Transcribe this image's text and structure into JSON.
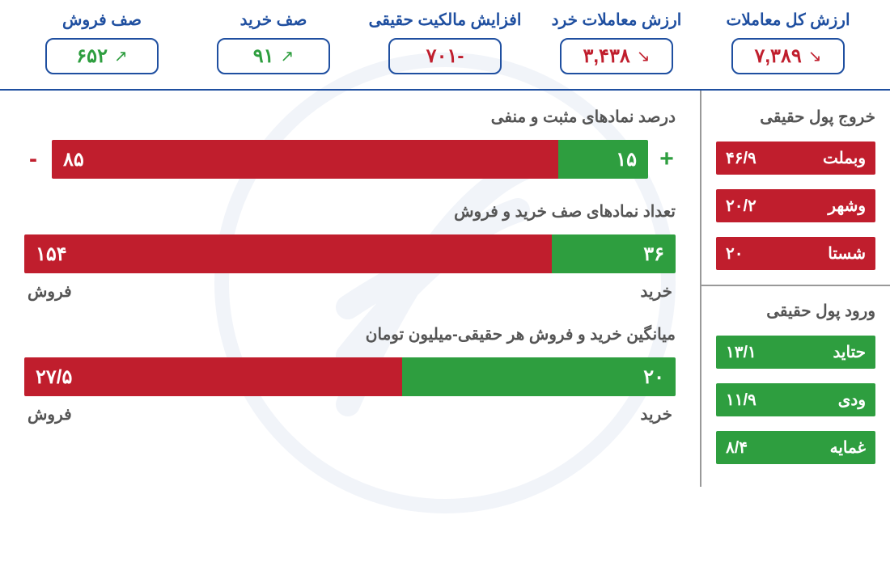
{
  "colors": {
    "blue": "#1f4fa0",
    "red": "#c01e2d",
    "green": "#2e9e3f",
    "gray": "#555555"
  },
  "metrics": [
    {
      "title": "ارزش کل معاملات",
      "value": "۷,۳۸۹",
      "color": "red",
      "arrow": "down"
    },
    {
      "title": "ارزش معاملات خرد",
      "value": "۳,۴۳۸",
      "color": "red",
      "arrow": "down"
    },
    {
      "title": "افزایش مالکیت حقیقی",
      "value": "-۷۰۱",
      "color": "red",
      "arrow": "none"
    },
    {
      "title": "صف خرید",
      "value": "۹۱",
      "color": "green",
      "arrow": "up"
    },
    {
      "title": "صف فروش",
      "value": "۶۵۲",
      "color": "green",
      "arrow": "up"
    }
  ],
  "sidebar": {
    "outflow_title": "خروج پول حقیقی",
    "outflow": [
      {
        "name": "وبملت",
        "value": "۴۶/۹"
      },
      {
        "name": "وشهر",
        "value": "۲۰/۲"
      },
      {
        "name": "شستا",
        "value": "۲۰"
      }
    ],
    "inflow_title": "ورود پول حقیقی",
    "inflow": [
      {
        "name": "حتاید",
        "value": "۱۳/۱"
      },
      {
        "name": "ودی",
        "value": "۱۱/۹"
      },
      {
        "name": "غمایه",
        "value": "۸/۴"
      }
    ]
  },
  "charts": {
    "chart1": {
      "title": "درصد نمادهای مثبت و منفی",
      "pos_pct": 15,
      "neg_pct": 85,
      "pos_label": "۱۵",
      "neg_label": "۸۵",
      "show_signs": true
    },
    "chart2": {
      "title": "تعداد نمادهای صف خرید و فروش",
      "pos_pct": 19,
      "neg_pct": 81,
      "pos_label": "۳۶",
      "neg_label": "۱۵۴",
      "right_caption": "خرید",
      "left_caption": "فروش"
    },
    "chart3": {
      "title": "میانگین خرید و فروش هر حقیقی-میلیون تومان",
      "pos_pct": 42,
      "neg_pct": 58,
      "pos_label": "۲۰",
      "neg_label": "۲۷/۵",
      "right_caption": "خرید",
      "left_caption": "فروش"
    }
  }
}
